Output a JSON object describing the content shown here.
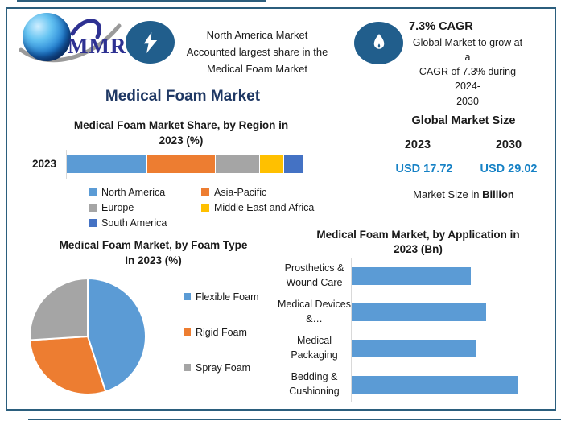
{
  "theme": {
    "border_color": "#2B5E7D",
    "icon_bg": "#215E8C",
    "title_color": "#1F3864",
    "value_color": "#1581C5",
    "axis_color": "#D9D9D9"
  },
  "header": {
    "logo_text": "MMR",
    "banner1_lines": [
      "North America Market",
      "Accounted largest share in the",
      "Medical Foam Market"
    ],
    "banner2_title": "7.3% CAGR",
    "banner2_lines": [
      "Global Market to grow at a",
      "CAGR of 7.3% during 2024-",
      "2030"
    ]
  },
  "main_title": "Medical Foam Market",
  "market_size": {
    "heading": "Global Market Size",
    "year_left": "2023",
    "year_right": "2030",
    "value_left": "USD 17.72",
    "value_right": "USD 29.02",
    "note_prefix": "Market Size in",
    "note_bold": "Billion"
  },
  "chart_data": [
    {
      "type": "bar",
      "subtype": "stacked-horizontal",
      "title": "Medical Foam Market Share, by Region in 2023 (%)",
      "title_lines": [
        "Medical Foam Market Share, by Region in",
        "2023 (%)"
      ],
      "categories": [
        "2023"
      ],
      "series": [
        {
          "name": "North America",
          "values": [
            34
          ],
          "color": "#5B9BD5"
        },
        {
          "name": "Asia-Pacific",
          "values": [
            29
          ],
          "color": "#ED7D31"
        },
        {
          "name": "Europe",
          "values": [
            19
          ],
          "color": "#A5A5A5"
        },
        {
          "name": "Middle East and Africa",
          "values": [
            10
          ],
          "color": "#FFC000"
        },
        {
          "name": "South America",
          "values": [
            8
          ],
          "color": "#4472C4"
        }
      ],
      "unit": "%",
      "xlim": [
        0,
        100
      ],
      "legend_position": "bottom",
      "values_estimated_from_pixels": true
    },
    {
      "type": "pie",
      "title": "Medical Foam Market, by Foam Type In 2023 (%)",
      "title_lines": [
        "Medical Foam Market, by Foam Type",
        "In 2023 (%)"
      ],
      "labels": [
        "Flexible Foam",
        "Rigid Foam",
        "Spray Foam"
      ],
      "values": [
        45,
        29,
        26
      ],
      "colors": [
        "#5B9BD5",
        "#ED7D31",
        "#A5A5A5"
      ],
      "unit": "%",
      "start_angle_deg": 0,
      "direction": "clockwise",
      "legend_position": "right",
      "values_estimated_from_pixels": true
    },
    {
      "type": "bar",
      "subtype": "horizontal",
      "title": "Medical Foam Market, by Application in 2023 (Bn)",
      "title_lines": [
        "Medical Foam Market, by Application in",
        "2023 (Bn)"
      ],
      "categories": [
        "Prosthetics & Wound Care",
        "Medical Devices &…",
        "Medical Packaging",
        "Bedding & Cushioning"
      ],
      "values": [
        4.3,
        4.85,
        4.45,
        6.0
      ],
      "bar_color": "#5B9BD5",
      "unit": "Bn",
      "xlim": [
        0,
        6.0
      ],
      "grid": false,
      "values_estimated_from_pixels": true
    }
  ]
}
